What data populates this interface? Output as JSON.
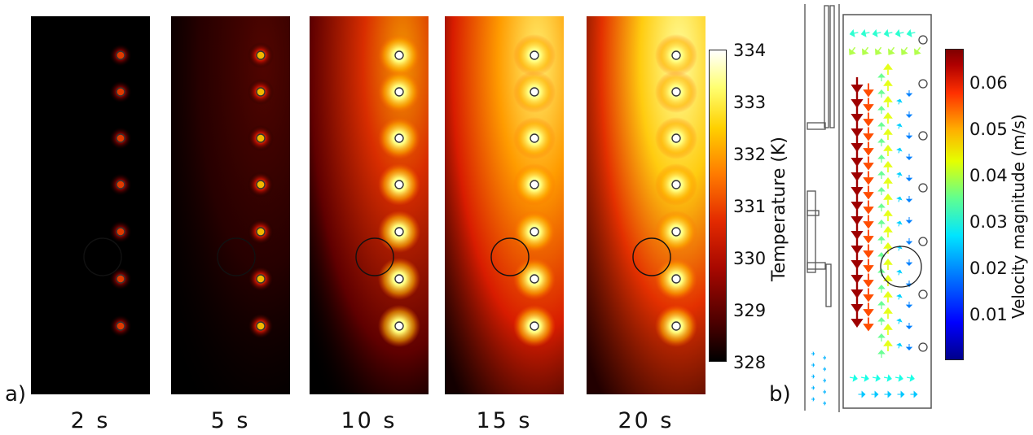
{
  "panel_a": {
    "letter": "a)",
    "times": [
      "2 s",
      "5 s",
      "10 s",
      "15 s",
      "20 s"
    ],
    "intensity": [
      0.12,
      0.3,
      0.62,
      0.85,
      1.0
    ]
  },
  "temperature_colorbar": {
    "title": "Temperature (K)",
    "ticks": [
      "334",
      "333",
      "332",
      "331",
      "330",
      "329",
      "328"
    ],
    "min": 328,
    "max": 334
  },
  "panel_b": {
    "letter": "b)"
  },
  "velocity_colorbar": {
    "title": "Velocity magnitude (m/s)",
    "ticks": [
      "0.06",
      "0.05",
      "0.04",
      "0.03",
      "0.02",
      "0.01"
    ],
    "min": 0,
    "max": 0.067
  },
  "colors": {
    "hot_black": "#000000",
    "hot_red": "#cc1a00",
    "hot_yellow": "#ffee22",
    "hot_white": "#ffffff",
    "jet_blue": "#00008b",
    "jet_red": "#7f0000"
  }
}
